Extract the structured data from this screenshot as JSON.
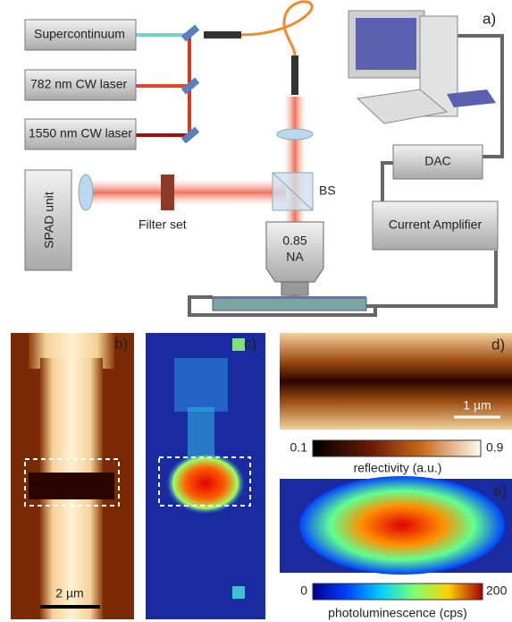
{
  "panel_a": {
    "label": "a)",
    "sources": [
      "Supercontinuum",
      "782 nm CW laser",
      "1550 nm CW laser"
    ],
    "detector": "SPAD unit",
    "filter": "Filter set",
    "beamsplitter": "BS",
    "objective": [
      "0.85",
      "NA"
    ],
    "dac": "DAC",
    "amplifier": "Current Amplifier"
  },
  "panel_b": {
    "label": "b)",
    "scale_bar": "2 µm"
  },
  "panel_c": {
    "label": "c)"
  },
  "panel_d": {
    "label": "d)",
    "scale_bar": "1 µm"
  },
  "colorbar_reflectivity": {
    "min": "0.1",
    "max": "0.9",
    "label": "reflectivity (a.u.)"
  },
  "panel_e": {
    "label": "e)"
  },
  "colorbar_pl": {
    "min": "0",
    "max": "200",
    "label": "photoluminescence (cps)"
  }
}
